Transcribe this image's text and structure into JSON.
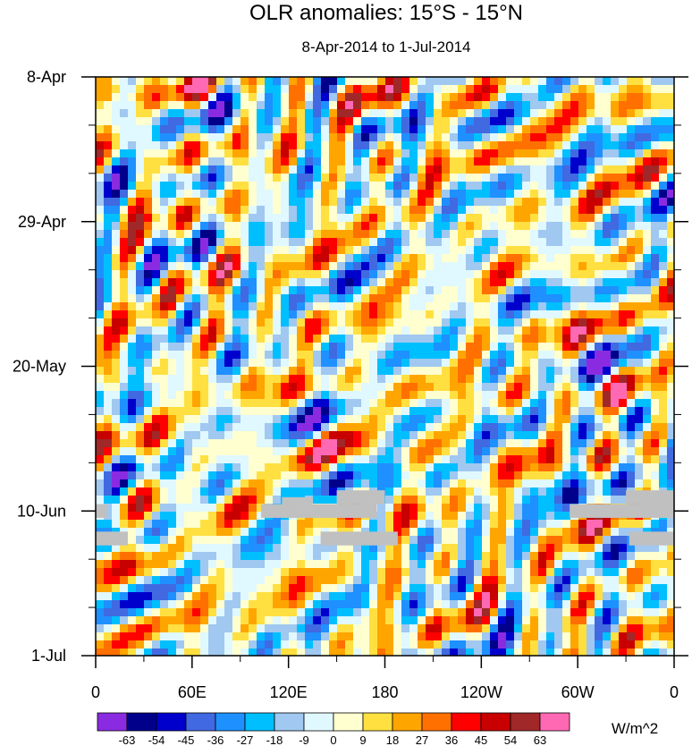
{
  "chart_data": {
    "type": "heatmap",
    "title": "OLR anomalies: 15°S - 15°N",
    "subtitle": "8-Apr-2014 to 1-Jul-2014",
    "x_axis": {
      "label": "",
      "ticks": [
        "0",
        "60E",
        "120E",
        "180",
        "120W",
        "60W",
        "0"
      ],
      "tick_values_deg_east": [
        0,
        60,
        120,
        180,
        240,
        300,
        360
      ],
      "range": [
        0,
        360
      ]
    },
    "y_axis": {
      "label": "",
      "ticks": [
        "8-Apr",
        "29-Apr",
        "20-May",
        "10-Jun",
        "1-Jul"
      ],
      "tick_values_day": [
        0,
        21,
        42,
        63,
        84
      ],
      "range": [
        0,
        84
      ],
      "direction": "top-to-bottom (time increases downward)"
    },
    "colorbar": {
      "units": "W/m^2",
      "levels": [
        "-63",
        "-54",
        "-45",
        "-36",
        "-27",
        "-18",
        "-9",
        "0",
        "9",
        "18",
        "27",
        "36",
        "45",
        "54",
        "63"
      ],
      "colors": [
        "#8a2be2",
        "#00008b",
        "#0000cd",
        "#4169e1",
        "#1e90ff",
        "#00bfff",
        "#a0c8f0",
        "#e0f8ff",
        "#ffffd0",
        "#ffe040",
        "#ffa500",
        "#ff7000",
        "#ff0000",
        "#c80000",
        "#a02828",
        "#ff69b4"
      ]
    },
    "missing_color": "#c0c0c0",
    "missing_data_regions": [
      {
        "lon_range_deg_east": [
          0,
          7
        ],
        "day_range": [
          62,
          64
        ]
      },
      {
        "lon_range_deg_east": [
          0,
          20
        ],
        "day_range": [
          66,
          68
        ]
      },
      {
        "lon_range_deg_east": [
          103,
          146
        ],
        "day_range": [
          62,
          64
        ]
      },
      {
        "lon_range_deg_east": [
          116,
          135
        ],
        "day_range": [
          61,
          62
        ]
      },
      {
        "lon_range_deg_east": [
          150,
          180
        ],
        "day_range": [
          60,
          62
        ]
      },
      {
        "lon_range_deg_east": [
          140,
          175
        ],
        "day_range": [
          62,
          64
        ]
      },
      {
        "lon_range_deg_east": [
          140,
          188
        ],
        "day_range": [
          66,
          68
        ]
      },
      {
        "lon_range_deg_east": [
          295,
          360
        ],
        "day_range": [
          62,
          64
        ]
      },
      {
        "lon_range_deg_east": [
          330,
          360
        ],
        "day_range": [
          60,
          62
        ]
      },
      {
        "lon_range_deg_east": [
          332,
          360
        ],
        "day_range": [
          66,
          68
        ]
      }
    ]
  }
}
